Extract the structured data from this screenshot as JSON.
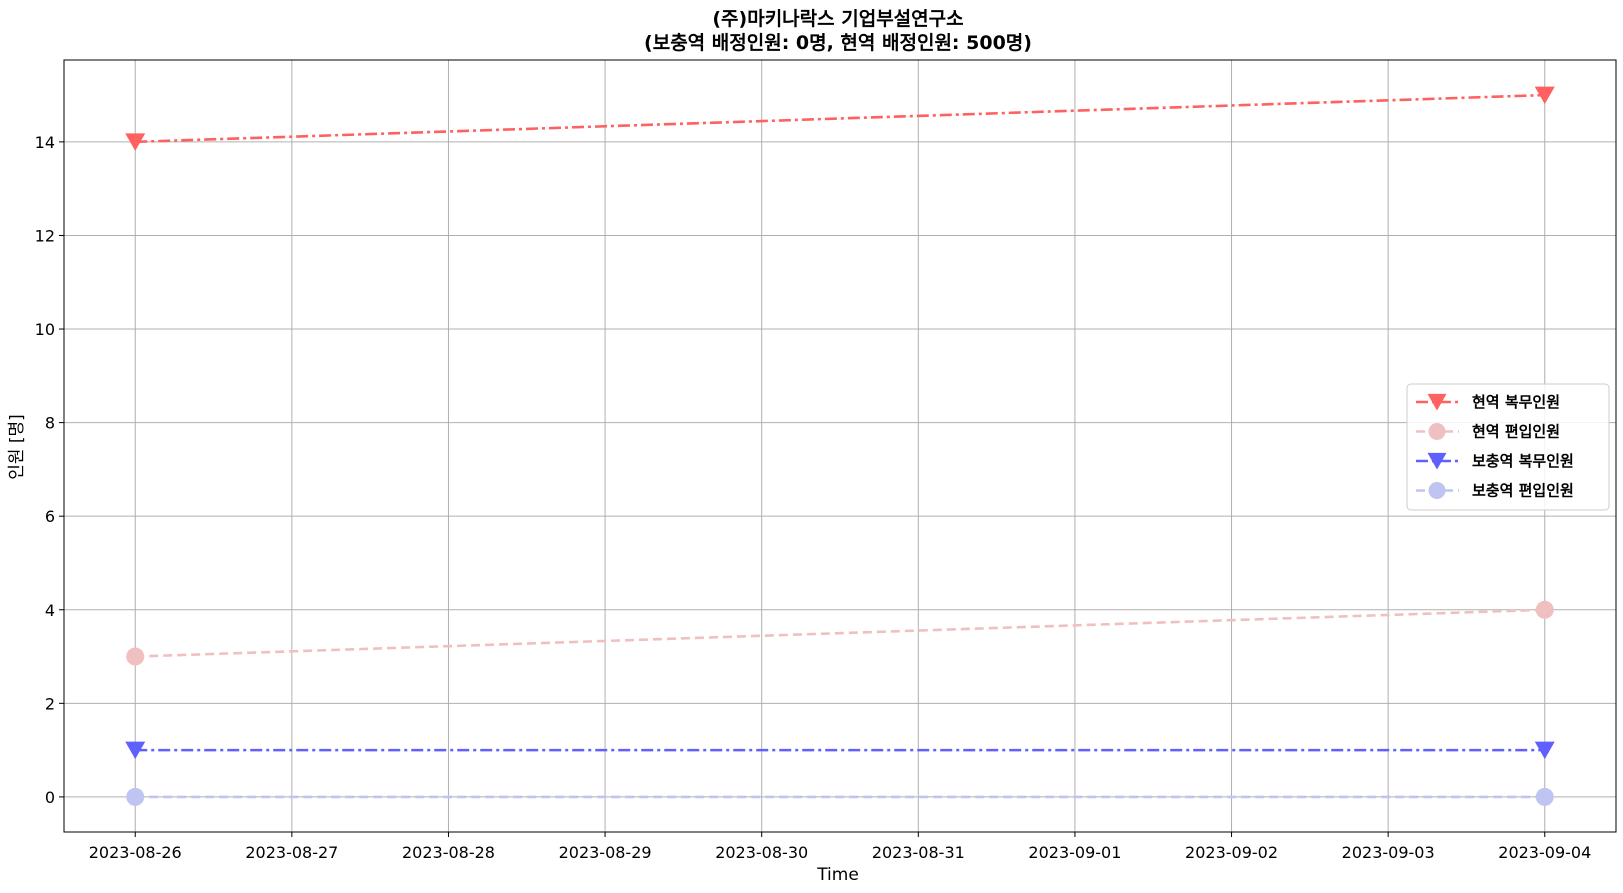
{
  "chart_data": {
    "type": "line",
    "title_line1": "(주)마키나락스   기업부설연구소",
    "title_line2": "(보충역   배정인원:   0명,   현역   배정인원:   500명)",
    "xlabel": "Time",
    "ylabel": "인원   [명]",
    "x_ticks": [
      "2023-08-26",
      "2023-08-27",
      "2023-08-28",
      "2023-08-29",
      "2023-08-30",
      "2023-08-31",
      "2023-09-01",
      "2023-09-02",
      "2023-09-03",
      "2023-09-04"
    ],
    "y_ticks": [
      "0",
      "2",
      "4",
      "6",
      "8",
      "10",
      "12",
      "14"
    ],
    "y_tick_values": [
      0,
      2,
      4,
      6,
      8,
      10,
      12,
      14
    ],
    "ylim": [
      -0.75,
      15.75
    ],
    "xlim": [
      "2023-08-25T13:05",
      "2023-09-04T10:55"
    ],
    "grid": true,
    "legend_position": "center-right",
    "series": [
      {
        "name": "현역   복무인원",
        "x": [
          "2023-08-26",
          "2023-09-04"
        ],
        "values": [
          14,
          15
        ],
        "color": "#ff6060",
        "marker": "triangle-down",
        "line_style": "dash-dot"
      },
      {
        "name": "현역   편입인원",
        "x": [
          "2023-08-26",
          "2023-09-04"
        ],
        "values": [
          3,
          4
        ],
        "color": "#f0c0c0",
        "marker": "circle",
        "line_style": "dashed"
      },
      {
        "name": "보충역   복무인원",
        "x": [
          "2023-08-26",
          "2023-09-04"
        ],
        "values": [
          1,
          1
        ],
        "color": "#6060ff",
        "marker": "triangle-down",
        "line_style": "dash-dot"
      },
      {
        "name": "보충역   편입인원",
        "x": [
          "2023-08-26",
          "2023-09-04"
        ],
        "values": [
          0,
          0
        ],
        "color": "#c0c4f0",
        "marker": "circle",
        "line_style": "dashed"
      }
    ]
  }
}
